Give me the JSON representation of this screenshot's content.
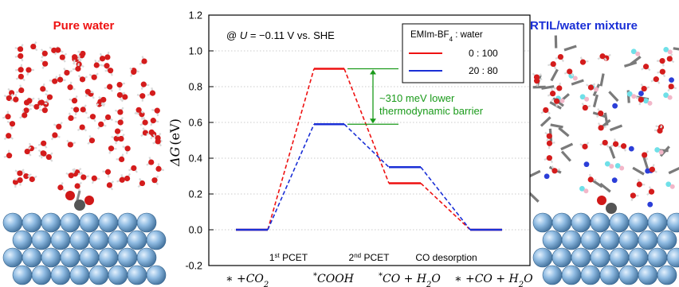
{
  "left_panel": {
    "title": "Pure water",
    "title_color": "#ee1111"
  },
  "right_panel": {
    "title": "RTIL/water mixture",
    "title_color": "#1a2fd6"
  },
  "chart_data": {
    "type": "line",
    "annotation_condition_pre": "@ ",
    "annotation_condition_var": "U",
    "annotation_condition_post": " = −0.11 V vs. SHE",
    "ylabel_symbol": "ΔG",
    "ylabel_unit": "(eV)",
    "ylim": [
      -0.2,
      1.2
    ],
    "y_ticks": [
      "-0.2",
      "0.0",
      "0.2",
      "0.4",
      "0.6",
      "0.8",
      "1.0",
      "1.2"
    ],
    "grid": "horizontal dotted",
    "steps": [
      "1st PCET",
      "2nd PCET",
      "CO desorption"
    ],
    "states": [
      "∗ +CO2",
      "*COOH",
      "*CO + H2O",
      "∗ +CO + H2O"
    ],
    "legend": {
      "title": "EMIm-BF4 : water",
      "placement": "top-right",
      "entries": [
        "0 : 100",
        "20 : 80"
      ]
    },
    "series": [
      {
        "name": "0 : 100",
        "color": "#ee1111",
        "values": [
          0.0,
          0.9,
          0.26,
          0.0
        ]
      },
      {
        "name": "20 : 80",
        "color": "#1a2fd6",
        "values": [
          0.0,
          0.59,
          0.35,
          0.0
        ]
      }
    ],
    "barrier_annotation": {
      "line1": "~310 meV lower",
      "line2": "thermodynamic barrier",
      "color": "#1a9a1a",
      "from": 0.9,
      "to": 0.59
    }
  }
}
